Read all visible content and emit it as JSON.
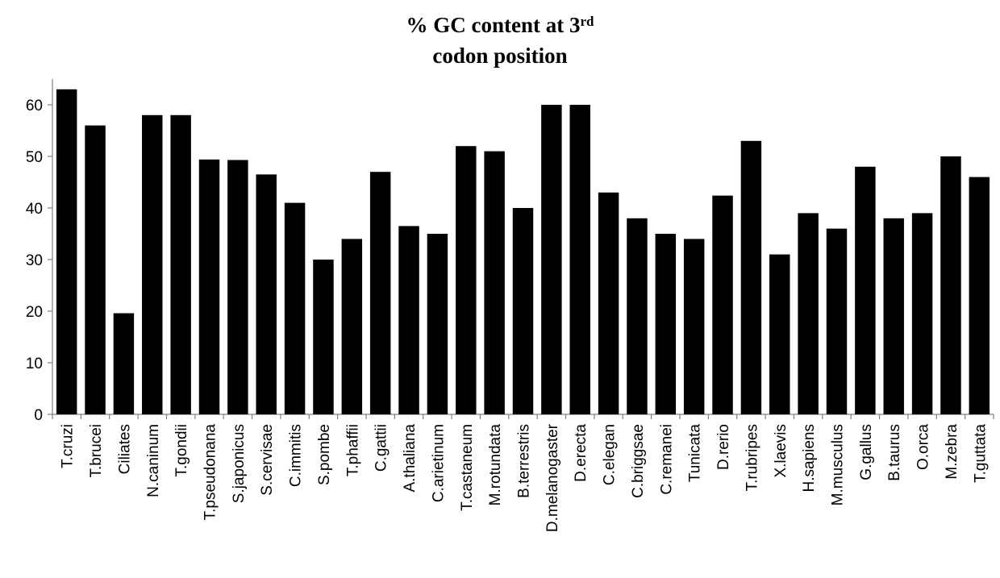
{
  "chart_data": {
    "type": "bar",
    "title_main": "% GC content at 3",
    "title_sup": "rd",
    "title_line2": "codon position",
    "xlabel": "",
    "ylabel": "",
    "ylim": [
      0,
      65
    ],
    "yticks": [
      0,
      10,
      20,
      30,
      40,
      50,
      60
    ],
    "grid": false,
    "bar_color": "#000000",
    "categories": [
      "T.cruzi",
      "T.brucei",
      "Ciliates",
      "N.caninum",
      "T.gondii",
      "T.pseudonana",
      "S.japonicus",
      "S.cervisae",
      "C.immitis",
      "S.pombe",
      "T.phaffii",
      "C.gattii",
      "A.thaliana",
      "C.arietinum",
      "T.castaneum",
      "M.rotundata",
      "B.terrestris",
      "D.melanogaster",
      "D.erecta",
      "C.elegan",
      "C.briggsae",
      "C.remanei",
      "Tunicata",
      "D.rerio",
      "T.rubripes",
      "X.laevis",
      "H.sapiens",
      "M.musculus",
      "G.gallus",
      "B.taurus",
      "O.orca",
      "M.zebra",
      "T.guttata"
    ],
    "values": [
      63,
      56,
      19.6,
      58,
      58,
      49.4,
      49.3,
      46.5,
      41,
      30,
      34,
      47,
      36.5,
      35,
      52,
      51,
      40,
      60,
      60,
      43,
      38,
      35,
      34,
      42.4,
      53,
      31,
      39,
      36,
      48,
      38,
      39,
      50,
      46
    ]
  }
}
